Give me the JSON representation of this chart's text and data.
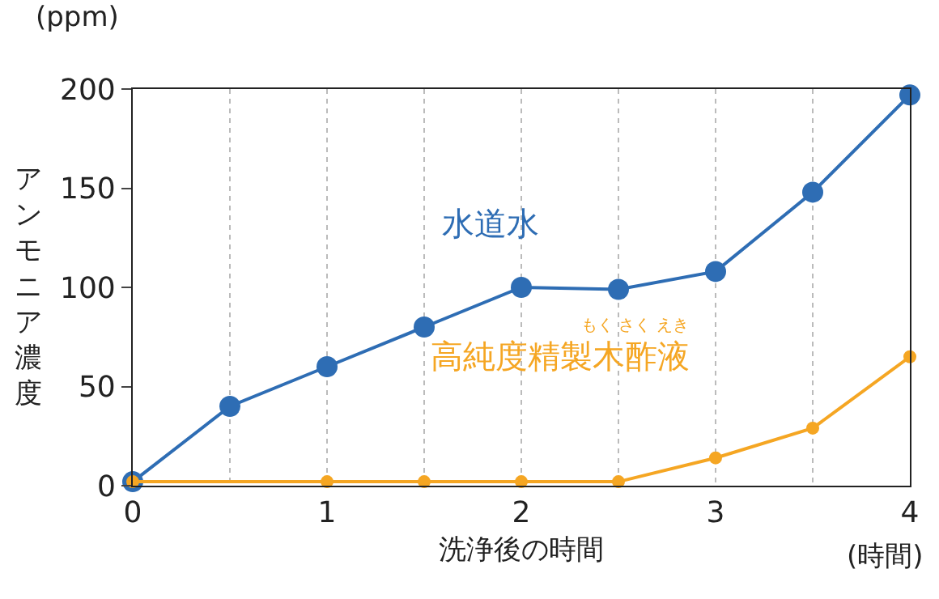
{
  "chart_data": {
    "type": "line",
    "xlabel": "洗浄後の時間",
    "ylabel": "アンモニア濃度",
    "x": [
      0,
      0.5,
      1,
      1.5,
      2,
      2.5,
      3,
      3.5,
      4
    ],
    "series": [
      {
        "name": "水道水",
        "color": "#2e6db4",
        "values": [
          2,
          40,
          60,
          80,
          100,
          99,
          108,
          148,
          197
        ]
      },
      {
        "name": "高純度精製木酢液",
        "color": "#f5a623",
        "x": [
          0,
          1,
          1.5,
          2,
          2.5,
          3,
          3.5,
          4
        ],
        "values": [
          2,
          2,
          2,
          2,
          2,
          14,
          29,
          65
        ]
      }
    ],
    "xlim": [
      0,
      4
    ],
    "xticks": [
      0,
      {
        "value": 0.5,
        "label": null
      },
      1,
      {
        "value": 1.5,
        "label": null
      },
      2,
      {
        "value": 2.5,
        "label": null
      },
      3,
      {
        "value": 3.5,
        "label": null
      },
      4
    ],
    "ylim": [
      0,
      200
    ],
    "yticks": [
      0,
      50,
      100,
      150,
      200
    ],
    "grid": "x",
    "legend": false,
    "marker": "circle",
    "line_style": "solid",
    "annotations": [
      "(ppm)",
      "(時間)",
      "もく さく えき"
    ]
  }
}
